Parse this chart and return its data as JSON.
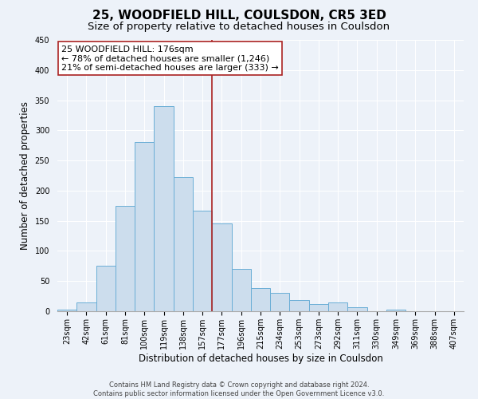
{
  "title": "25, WOODFIELD HILL, COULSDON, CR5 3ED",
  "subtitle": "Size of property relative to detached houses in Coulsdon",
  "xlabel": "Distribution of detached houses by size in Coulsdon",
  "ylabel": "Number of detached properties",
  "bin_labels": [
    "23sqm",
    "42sqm",
    "61sqm",
    "81sqm",
    "100sqm",
    "119sqm",
    "138sqm",
    "157sqm",
    "177sqm",
    "196sqm",
    "215sqm",
    "234sqm",
    "253sqm",
    "273sqm",
    "292sqm",
    "311sqm",
    "330sqm",
    "349sqm",
    "369sqm",
    "388sqm",
    "407sqm"
  ],
  "bar_heights": [
    3,
    14,
    75,
    175,
    280,
    340,
    223,
    167,
    145,
    70,
    38,
    30,
    18,
    12,
    15,
    6,
    0,
    3,
    0,
    0,
    0
  ],
  "bar_color": "#ccdded",
  "bar_edge_color": "#6aaed6",
  "vline_color": "#aa2222",
  "annotation_title": "25 WOODFIELD HILL: 176sqm",
  "annotation_line1": "← 78% of detached houses are smaller (1,246)",
  "annotation_line2": "21% of semi-detached houses are larger (333) →",
  "annotation_box_edge_color": "#aa2222",
  "ylim": [
    0,
    450
  ],
  "yticks": [
    0,
    50,
    100,
    150,
    200,
    250,
    300,
    350,
    400,
    450
  ],
  "footnote1": "Contains HM Land Registry data © Crown copyright and database right 2024.",
  "footnote2": "Contains public sector information licensed under the Open Government Licence v3.0.",
  "background_color": "#edf2f9",
  "grid_color": "#ffffff",
  "title_fontsize": 11,
  "subtitle_fontsize": 9.5,
  "ylabel_fontsize": 8.5,
  "xlabel_fontsize": 8.5,
  "annotation_fontsize": 8,
  "tick_fontsize": 7,
  "footnote_fontsize": 6
}
